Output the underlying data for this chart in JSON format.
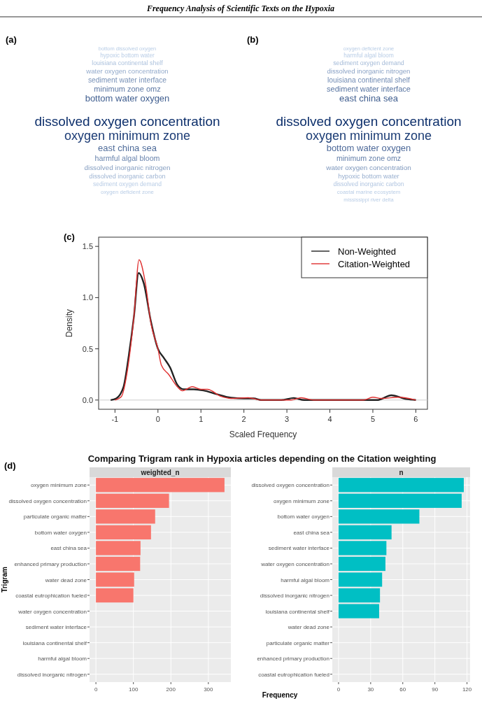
{
  "chart_data": [
    {
      "type": "other",
      "title": "(a)",
      "annotations": [
        "Frequency Analysis of Scientific Texts on the Hypoxia"
      ],
      "categories": [
        "dissolved oxygen concentration",
        "oxygen minimum zone",
        "bottom water oxygen",
        "east china sea",
        "minimum zone omz",
        "harmful algal bloom",
        "sediment water interface",
        "dissolved inorganic nitrogen",
        "water oxygen concentration",
        "dissolved inorganic carbon",
        "louisiana continental shelf",
        "sediment oxygen demand",
        "hypoxic bottom water",
        "oxygen deficient zone",
        "bottom dissolved oxygen"
      ]
    },
    {
      "type": "other",
      "title": "(b)",
      "categories": [
        "dissolved oxygen concentration",
        "oxygen minimum zone",
        "east china sea",
        "bottom water oxygen",
        "sediment water interface",
        "minimum zone omz",
        "louisiana continental shelf",
        "water oxygen concentration",
        "dissolved inorganic nitrogen",
        "hypoxic bottom water",
        "sediment oxygen demand",
        "dissolved inorganic carbon",
        "harmful algal bloom",
        "coastal marine ecosystem",
        "oxygen deficient zone",
        "mississippi river delta"
      ]
    },
    {
      "type": "line",
      "title": "(c)",
      "xlabel": "Scaled Frequency",
      "ylabel": "Density",
      "xlim": [
        -1.38,
        6.27
      ],
      "ylim": [
        -0.09,
        1.59
      ],
      "xticks": [
        -1,
        0,
        1,
        2,
        3,
        4,
        5,
        6
      ],
      "yticks": [
        {
          "value": 0,
          "label": "0.0"
        },
        0.5,
        {
          "value": 1,
          "label": "1.0"
        },
        1.5
      ],
      "legend": "top right",
      "series": [
        {
          "name": "Non-Weighted",
          "color": "#222222",
          "x": [
            -1.1,
            -0.97,
            -0.8,
            -0.68,
            -0.56,
            -0.45,
            -0.33,
            -0.16,
            0,
            0.14,
            0.28,
            0.45,
            0.6,
            0.83,
            1.06,
            1.35,
            1.7,
            2,
            2.23,
            2.4,
            2.87,
            3.16,
            3.4,
            5.12,
            5.2,
            5.43,
            5.78,
            6
          ],
          "values": [
            0,
            0.016,
            0.13,
            0.43,
            0.81,
            1.24,
            1.14,
            0.76,
            0.5,
            0.41,
            0.32,
            0.15,
            0.105,
            0.105,
            0.094,
            0.06,
            0.023,
            0.016,
            0.016,
            0,
            0,
            0.02,
            0,
            0,
            0.01,
            0.047,
            0.01,
            0
          ]
        },
        {
          "name": "Citation-Weighted",
          "color": "#e03030",
          "x": [
            -1,
            -0.85,
            -0.71,
            -0.56,
            -0.44,
            -0.3,
            -0.16,
            0,
            0.08,
            0.25,
            0.45,
            0.57,
            0.8,
            1,
            1.15,
            1.47,
            1.7,
            2.1,
            2.4,
            3.1,
            3.33,
            3.62,
            4.78,
            5,
            5.2,
            5.6,
            6
          ],
          "values": [
            0,
            0.035,
            0.29,
            0.81,
            1.37,
            1.16,
            0.74,
            0.5,
            0.34,
            0.25,
            0.13,
            0.09,
            0.13,
            0.105,
            0.105,
            0.035,
            0.016,
            0.023,
            0,
            0,
            0.023,
            0,
            0,
            0.028,
            0.016,
            0.028,
            0
          ]
        }
      ]
    },
    {
      "type": "bar",
      "orientation": "horizontal",
      "title": "Comparing Trigram rank in Hypoxia articles depending on the Citation weighting",
      "subtitle": "weighted_n",
      "ylabel": "Trigram",
      "xlabel": "Frequency",
      "annotations": [
        "(d)"
      ],
      "grid": true,
      "color": "#f8766d",
      "xlim": [
        -17,
        360
      ],
      "xticks": [
        0,
        100,
        200,
        300
      ],
      "categories": [
        "oxygen minimum zone",
        "dissolved oxygen concentration",
        "particulate organic matter",
        "bottom water oxygen",
        "east china sea",
        "enhanced primary production",
        "water dead zone",
        "coastal eutrophication fueled",
        "water oxygen concentration",
        "sediment water interface",
        "louisiana continental shelf",
        "harmful algal bloom",
        "dissolved inorganic nitrogen"
      ],
      "values": [
        343,
        195,
        158,
        147,
        119,
        118,
        102,
        100,
        null,
        null,
        null,
        null,
        null
      ]
    },
    {
      "type": "bar",
      "orientation": "horizontal",
      "subtitle": "n",
      "grid": true,
      "color": "#00bfc4",
      "xlim": [
        -5.85,
        122.9
      ],
      "xticks": [
        0,
        30,
        60,
        90,
        120
      ],
      "categories": [
        "dissolved oxygen concentration",
        "oxygen minimum zone",
        "bottom water oxygen",
        "east china sea",
        "sediment water interface",
        "water oxygen concentration",
        "harmful algal bloom",
        "dissolved inorganic nitrogen",
        "louisiana continental shelf",
        "water dead zone",
        "particulate organic matter",
        "enhanced primary production",
        "coastal eutrophication fueled"
      ],
      "values": [
        117,
        115,
        75.5,
        49.5,
        44.7,
        43.8,
        40.7,
        38.7,
        37.9,
        null,
        null,
        null,
        null
      ]
    }
  ]
}
